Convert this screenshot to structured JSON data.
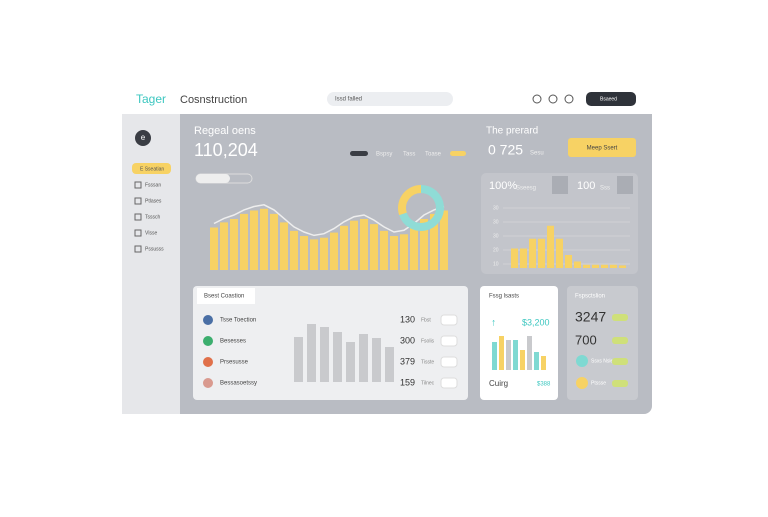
{
  "header": {
    "brand": "Tager",
    "title": "Cosnstruction",
    "search": "Issd falled",
    "button": "Bsaeed"
  },
  "sidebar": {
    "avatar": "e",
    "items": [
      "E Sseatian",
      "Fsssan",
      "Ptlases",
      "Tsssch",
      "Vlsse",
      "Pssusss"
    ]
  },
  "overview": {
    "title": "Regeal oens",
    "value": "110,204",
    "legend": [
      "Bspsy",
      "Tass",
      "Toase"
    ],
    "project_title": "The prerard",
    "project_value": "0 725",
    "project_unit": "Sesu",
    "button": "Meep Ssert",
    "chart": {
      "values": [
        50,
        56,
        60,
        66,
        70,
        72,
        66,
        56,
        46,
        40,
        36,
        38,
        44,
        52,
        58,
        60,
        54,
        46,
        40,
        42,
        50,
        60,
        66,
        70
      ]
    },
    "donut": {
      "values": [
        70,
        30
      ]
    }
  },
  "stats": {
    "value1": "100%",
    "label1": "Sseesg",
    "value2": "100",
    "label2": "Sss",
    "yticks": [
      "30",
      "30",
      "30",
      "20",
      "10"
    ],
    "chart": {
      "values": [
        30,
        30,
        45,
        45,
        65,
        45,
        20,
        10,
        5,
        5,
        5,
        5,
        4
      ]
    }
  },
  "table": {
    "tab": "Bsest Coastion",
    "rows": [
      [
        "Tsse Toection",
        "130",
        "Fbst"
      ],
      [
        "Besesses",
        "300",
        "Fsolis"
      ],
      [
        "Prsesusse",
        "379",
        "Tisste"
      ],
      [
        "Bessasoetssy",
        "159",
        "Tilnec"
      ]
    ],
    "chart": {
      "values": [
        45,
        58,
        55,
        50,
        40,
        48,
        44,
        35
      ]
    }
  },
  "sales": {
    "title": "Fssg lsasts",
    "value": "$3,200",
    "label": "Cuirg",
    "amount": "$388",
    "chart": {
      "values": [
        28,
        34,
        30,
        30,
        20,
        34,
        18,
        14
      ]
    }
  },
  "summary": {
    "title": "Fspsctslion",
    "value1": "3247",
    "value2": "700",
    "item1": "Ssxs Nsle",
    "item2": "Ptssse"
  }
}
